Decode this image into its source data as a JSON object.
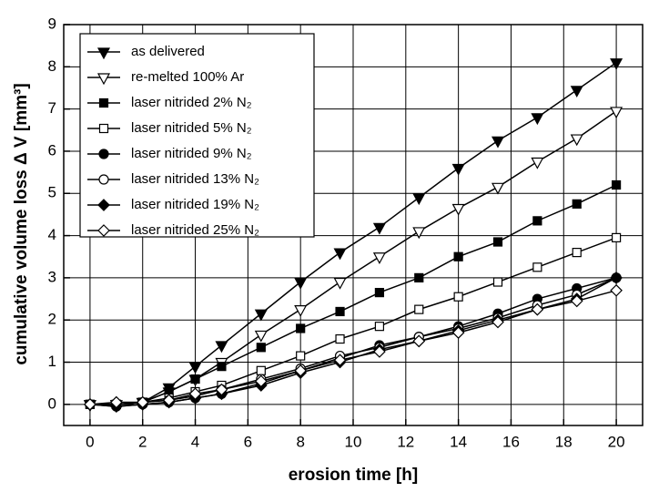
{
  "chart_data": {
    "type": "line",
    "x_label": "erosion time [h]",
    "y_label": "cumulative volume loss Δ V [mm³]",
    "x": [
      0,
      1,
      2,
      3,
      4,
      5,
      6.5,
      8,
      9.5,
      11,
      12.5,
      14,
      15.5,
      17,
      18.5,
      20
    ],
    "xlim": [
      -1,
      21
    ],
    "ylim": [
      -0.5,
      9
    ],
    "xticks": [
      0,
      2,
      4,
      6,
      8,
      10,
      12,
      14,
      16,
      18,
      20
    ],
    "yticks": [
      0,
      1,
      2,
      3,
      4,
      5,
      6,
      7,
      8,
      9
    ],
    "grid": true,
    "legend": "upper left",
    "series": [
      {
        "name": "as delivered",
        "color": "#000000",
        "marker": "triangle-down",
        "filled": true,
        "values": [
          0,
          0,
          0.05,
          0.4,
          0.9,
          1.4,
          2.15,
          2.9,
          3.6,
          4.2,
          4.9,
          5.6,
          6.25,
          6.8,
          7.45,
          8.1
        ]
      },
      {
        "name": "re-melted 100% Ar",
        "color": "#000000",
        "marker": "triangle-down",
        "filled": false,
        "values": [
          0,
          0,
          0.05,
          0.3,
          0.6,
          1.0,
          1.65,
          2.25,
          2.9,
          3.5,
          4.1,
          4.65,
          5.15,
          5.75,
          6.3,
          6.95
        ]
      },
      {
        "name": "laser nitrided 2% N₂",
        "color": "#000000",
        "marker": "square",
        "filled": true,
        "values": [
          0,
          0,
          0.05,
          0.3,
          0.6,
          0.9,
          1.35,
          1.8,
          2.2,
          2.65,
          3.0,
          3.5,
          3.85,
          4.35,
          4.75,
          5.2
        ]
      },
      {
        "name": "laser nitrided 5% N₂",
        "color": "#000000",
        "marker": "square",
        "filled": false,
        "values": [
          0,
          0,
          0.05,
          0.15,
          0.3,
          0.45,
          0.8,
          1.15,
          1.55,
          1.85,
          2.25,
          2.55,
          2.9,
          3.25,
          3.6,
          3.95
        ]
      },
      {
        "name": "laser nitrided 9% N₂",
        "color": "#000000",
        "marker": "circle",
        "filled": true,
        "values": [
          0,
          -0.05,
          0,
          0.05,
          0.15,
          0.25,
          0.5,
          0.8,
          1.1,
          1.4,
          1.6,
          1.85,
          2.15,
          2.5,
          2.75,
          3.0
        ]
      },
      {
        "name": "laser nitrided 13% N₂",
        "color": "#000000",
        "marker": "circle",
        "filled": false,
        "values": [
          0,
          0,
          0.05,
          0.1,
          0.2,
          0.35,
          0.6,
          0.85,
          1.15,
          1.35,
          1.6,
          1.8,
          2.05,
          2.35,
          2.6,
          3.0
        ]
      },
      {
        "name": "laser nitrided 19% N₂",
        "color": "#000000",
        "marker": "diamond",
        "filled": true,
        "values": [
          0,
          -0.05,
          0,
          0.05,
          0.15,
          0.25,
          0.45,
          0.75,
          1.0,
          1.3,
          1.5,
          1.75,
          2.0,
          2.25,
          2.5,
          3.0
        ]
      },
      {
        "name": "laser nitrided 25% N₂",
        "color": "#000000",
        "marker": "diamond",
        "filled": false,
        "values": [
          0,
          0.05,
          0.05,
          0.1,
          0.25,
          0.35,
          0.55,
          0.8,
          1.05,
          1.25,
          1.5,
          1.7,
          1.95,
          2.25,
          2.45,
          2.7
        ]
      }
    ]
  }
}
